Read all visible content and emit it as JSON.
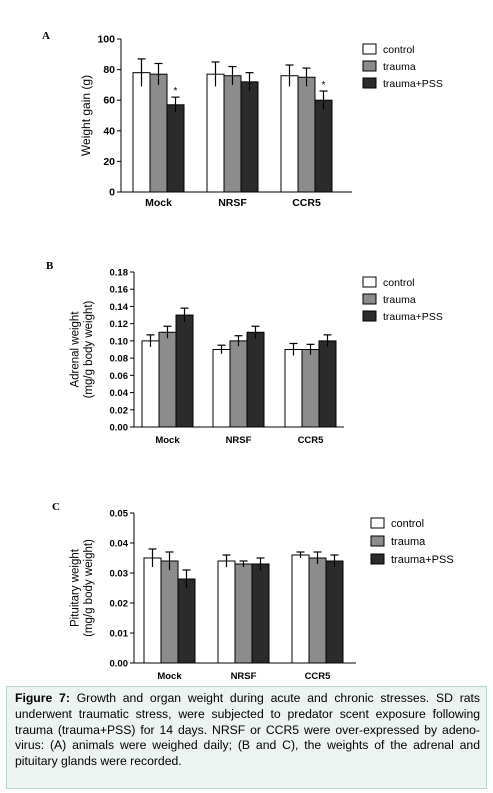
{
  "figure": {
    "caption_label": "Figure 7:",
    "caption_text": "Growth and organ weight during acute and chronic stresses. SD rats underwent traumatic stress, were subjected to predator scent exposure following trauma (trauma+PSS) for 14 days. NRSF or CCR5 were over-expressed by adeno-virus: (A) animals were weighed daily; (B and C), the weights of the adrenal and pituitary glands were recorded."
  },
  "colors": {
    "control": "#ffffff",
    "trauma": "#8c8c8c",
    "trauma_pss": "#2b2b2b",
    "axis": "#000000"
  },
  "chart_data": [
    {
      "type": "bar",
      "panel_label": "A",
      "categories": [
        "Mock",
        "NRSF",
        "CCR5"
      ],
      "ylabel_lines": [
        "Weight gain (g)"
      ],
      "ylim": [
        0,
        100
      ],
      "yticks": [
        "0",
        "20",
        "40",
        "60",
        "80",
        "100"
      ],
      "ytick_values": [
        0,
        20,
        40,
        60,
        80,
        100
      ],
      "series": [
        {
          "name": "control",
          "values": [
            78,
            77,
            76
          ],
          "errors": [
            9,
            8,
            7
          ],
          "marks": [
            "",
            "",
            ""
          ]
        },
        {
          "name": "trauma",
          "values": [
            77,
            76,
            75
          ],
          "errors": [
            7,
            6,
            6
          ],
          "marks": [
            "",
            "",
            ""
          ]
        },
        {
          "name": "trauma+PSS",
          "values": [
            57,
            72,
            60
          ],
          "errors": [
            5,
            6,
            6
          ],
          "marks": [
            "*",
            "",
            "*"
          ]
        }
      ],
      "legend": "top-right"
    },
    {
      "type": "bar",
      "panel_label": "B",
      "categories": [
        "Mock",
        "NRSF",
        "CCR5"
      ],
      "ylabel_lines": [
        "Adrenal weight",
        "(mg/g body weight)"
      ],
      "ylim": [
        0,
        0.18
      ],
      "yticks": [
        "0.00",
        "0.02",
        "0.04",
        "0.06",
        "0.08",
        "0.10",
        "0.12",
        "0.14",
        "0.16",
        "0.18"
      ],
      "ytick_values": [
        0,
        0.02,
        0.04,
        0.06,
        0.08,
        0.1,
        0.12,
        0.14,
        0.16,
        0.18
      ],
      "series": [
        {
          "name": "control",
          "values": [
            0.1,
            0.09,
            0.09
          ],
          "errors": [
            0.007,
            0.005,
            0.007
          ],
          "marks": [
            "",
            "",
            ""
          ]
        },
        {
          "name": "trauma",
          "values": [
            0.11,
            0.1,
            0.09
          ],
          "errors": [
            0.007,
            0.006,
            0.006
          ],
          "marks": [
            "",
            "",
            ""
          ]
        },
        {
          "name": "trauma+PSS",
          "values": [
            0.13,
            0.11,
            0.1
          ],
          "errors": [
            0.008,
            0.007,
            0.007
          ],
          "marks": [
            "",
            "",
            ""
          ]
        }
      ],
      "legend": "top-right"
    },
    {
      "type": "bar",
      "panel_label": "C",
      "categories": [
        "Mock",
        "NRSF",
        "CCR5"
      ],
      "ylabel_lines": [
        "Pituitary weight",
        "(mg/g body weight)"
      ],
      "ylim": [
        0,
        0.05
      ],
      "yticks": [
        "0.00",
        "0.01",
        "0.02",
        "0.03",
        "0.04",
        "0.05"
      ],
      "ytick_values": [
        0,
        0.01,
        0.02,
        0.03,
        0.04,
        0.05
      ],
      "series": [
        {
          "name": "control",
          "values": [
            0.035,
            0.034,
            0.036
          ],
          "errors": [
            0.003,
            0.002,
            0.001
          ],
          "marks": [
            "",
            "",
            ""
          ]
        },
        {
          "name": "trauma",
          "values": [
            0.034,
            0.033,
            0.035
          ],
          "errors": [
            0.003,
            0.001,
            0.002
          ],
          "marks": [
            "",
            "",
            ""
          ]
        },
        {
          "name": "trauma+PSS",
          "values": [
            0.028,
            0.033,
            0.034
          ],
          "errors": [
            0.003,
            0.002,
            0.002
          ],
          "marks": [
            "",
            "",
            ""
          ]
        }
      ],
      "legend": "top-right"
    }
  ]
}
